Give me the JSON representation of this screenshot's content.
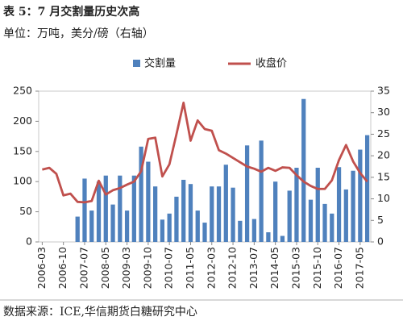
{
  "chart_data": {
    "type": "bar_line",
    "title": "表 5：7 月交割量历史次高",
    "subtitle": "单位：万吨，美分/磅（右轴）",
    "source": "数据来源：ICE,华信期货白糖研究中心",
    "categories": [
      "2006-03",
      null,
      null,
      "2006-10",
      null,
      null,
      "2007-07",
      null,
      null,
      "2008-05",
      null,
      null,
      "2009-03",
      null,
      null,
      "2009-10",
      null,
      null,
      "2010-07",
      null,
      null,
      "2011-05",
      null,
      null,
      "2012-03",
      null,
      null,
      "2012-10",
      null,
      null,
      "2013-07",
      null,
      null,
      "2014-05",
      null,
      null,
      "2015-03",
      null,
      null,
      "2015-10",
      null,
      null,
      "2016-07",
      null,
      null,
      "2017-05",
      null
    ],
    "series": [
      {
        "name": "交割量",
        "type": "bar",
        "color": "#4f81bd",
        "values": [
          null,
          null,
          null,
          null,
          null,
          42,
          105,
          52,
          100,
          110,
          62,
          110,
          52,
          110,
          158,
          133,
          92,
          37,
          47,
          75,
          103,
          96,
          52,
          32,
          92,
          92,
          128,
          90,
          35,
          160,
          38,
          168,
          16,
          100,
          10,
          85,
          123,
          237,
          70,
          123,
          63,
          47,
          124,
          87,
          118,
          153,
          177
        ]
      },
      {
        "name": "收盘价",
        "type": "line",
        "axis": "y2",
        "color": "#c0504d",
        "values": [
          16.8,
          17.2,
          15.8,
          10.8,
          11.2,
          9.3,
          9.2,
          9.5,
          14.2,
          11,
          12,
          12.5,
          13.3,
          14,
          16.4,
          23.9,
          24.2,
          15.2,
          18,
          25,
          32.3,
          23.5,
          28.2,
          26.2,
          25.8,
          21.3,
          20.5,
          19.5,
          18.5,
          17.5,
          17,
          16.3,
          17.2,
          16.5,
          17.3,
          17.2,
          15.5,
          14,
          13,
          12.3,
          12.3,
          14.3,
          19,
          22.5,
          18.7,
          16,
          14
        ]
      }
    ],
    "ylim": [
      0,
      250
    ],
    "yticks": [
      0,
      50,
      100,
      150,
      200,
      250
    ],
    "y2lim": [
      0,
      35
    ],
    "y2ticks": [
      0,
      5,
      10,
      15,
      20,
      25,
      30,
      35
    ]
  }
}
